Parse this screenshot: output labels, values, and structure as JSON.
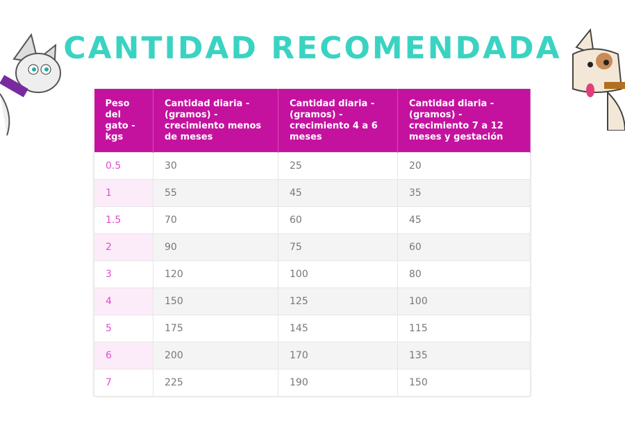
{
  "header": {
    "title": "CANTIDAD RECOMENDADA"
  },
  "table": {
    "headers": [
      "Peso del gato - kgs",
      "Cantidad diaria - (gramos) - crecimiento menos de meses",
      "Cantidad diaria - (gramos) - crecimiento 4 a 6 meses",
      "Cantidad diaria - (gramos) - crecimiento 7 a 12 meses y gestación"
    ],
    "rows": [
      [
        "0.5",
        "30",
        "25",
        "20"
      ],
      [
        "1",
        "55",
        "45",
        "35"
      ],
      [
        "1.5",
        "70",
        "60",
        "45"
      ],
      [
        "2",
        "90",
        "75",
        "60"
      ],
      [
        "3",
        "120",
        "100",
        "80"
      ],
      [
        "4",
        "150",
        "125",
        "100"
      ],
      [
        "5",
        "175",
        "145",
        "115"
      ],
      [
        "6",
        "200",
        "170",
        "135"
      ],
      [
        "7",
        "225",
        "190",
        "150"
      ]
    ]
  }
}
